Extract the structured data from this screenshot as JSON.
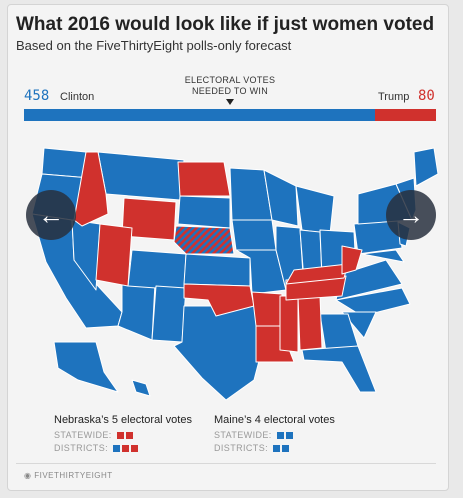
{
  "title": "What 2016 would look like if just women voted",
  "subtitle": "Based on the FiveThirtyEight polls-only forecast",
  "tally": {
    "clinton_votes": "458",
    "clinton_label": "Clinton",
    "trump_votes": "80",
    "trump_label": "Trump",
    "needed_label_line1": "ELECTORAL VOTES",
    "needed_label_line2": "NEEDED TO WIN",
    "clinton_share": 0.851,
    "trump_share": 0.149
  },
  "colors": {
    "clinton": "#1e73be",
    "trump": "#d0312d",
    "split_hatch": "striped red/blue"
  },
  "navigation": {
    "prev_icon": "arrow-left-icon",
    "next_icon": "arrow-right-icon"
  },
  "legend": {
    "nebraska": {
      "title": "Nebraska’s 5 electoral votes",
      "statewide_label": "STATEWIDE:",
      "districts_label": "DISTRICTS:",
      "statewide": [
        "trump",
        "trump"
      ],
      "districts": [
        "clinton",
        "trump",
        "trump"
      ]
    },
    "maine": {
      "title": "Maine’s 4 electoral votes",
      "statewide_label": "STATEWIDE:",
      "districts_label": "DISTRICTS:",
      "statewide": [
        "clinton",
        "clinton"
      ],
      "districts": [
        "clinton",
        "clinton"
      ]
    }
  },
  "footer": "FIVETHIRTYEIGHT"
}
